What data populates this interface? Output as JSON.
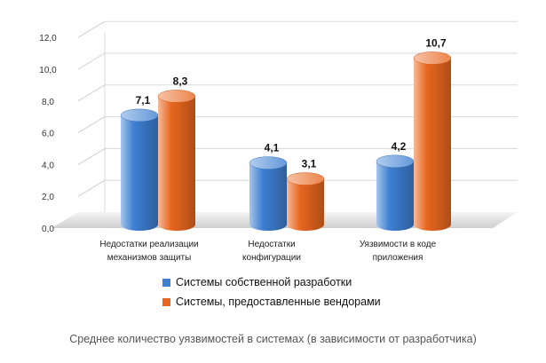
{
  "chart_data": {
    "type": "bar",
    "categories": [
      [
        "Недостатки реализации",
        "механизмов защиты"
      ],
      [
        "Недостатки",
        "конфигурации"
      ],
      [
        "Уязвимости в коде",
        "приложения"
      ]
    ],
    "series": [
      {
        "name": "Системы собственной разработки",
        "values": [
          7.1,
          4.1,
          4.2
        ],
        "labels": [
          "7,1",
          "4,1",
          "4,2"
        ],
        "color": "#3d7fd1"
      },
      {
        "name": "Системы, предоставленные вендорами",
        "values": [
          8.3,
          3.1,
          10.7
        ],
        "labels": [
          "8,3",
          "3,1",
          "10,7"
        ],
        "color": "#e8661f"
      }
    ],
    "yticks": [
      "0,0",
      "2,0",
      "4,0",
      "6,0",
      "8,0",
      "10,0",
      "12,0"
    ],
    "ylim": [
      0,
      12
    ],
    "grid": true,
    "legend_position": "bottom"
  },
  "caption": "Среднее количество уязвимостей в системах (в зависимости от разработчика)"
}
